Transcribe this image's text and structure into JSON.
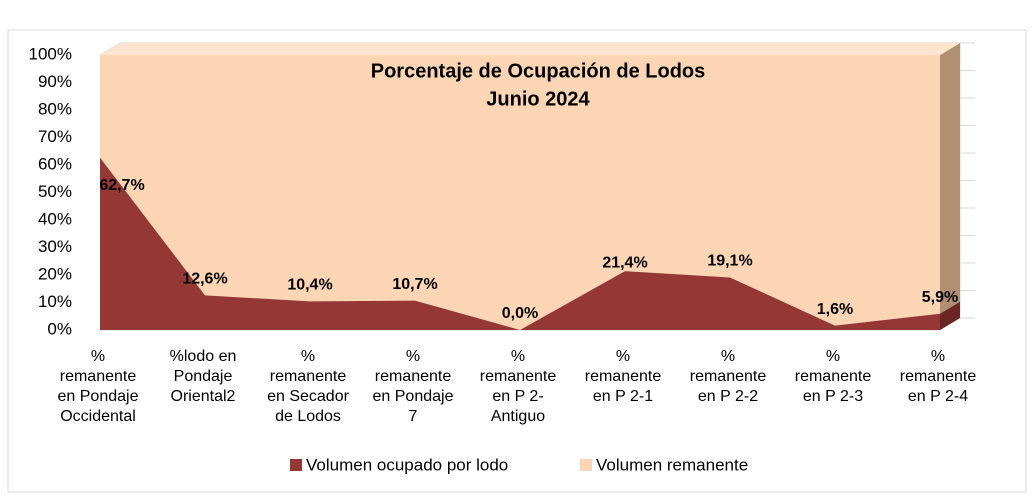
{
  "chart_data": {
    "type": "area",
    "title": "Porcentaje de Ocupación de Lodos",
    "subtitle": "Junio 2024",
    "categories": [
      [
        "%",
        "remanente",
        "en Pondaje",
        "Occidental"
      ],
      [
        "%lodo en",
        "Pondaje",
        "Oriental2"
      ],
      [
        "%",
        "remanente",
        "en Secador",
        "de Lodos"
      ],
      [
        "%",
        "remanente",
        "en Pondaje",
        "7"
      ],
      [
        "%",
        "remanente",
        "en P 2-",
        "Antiguo"
      ],
      [
        "%",
        "remanente",
        "en P 2-1"
      ],
      [
        "%",
        "remanente",
        "en P 2-2"
      ],
      [
        "%",
        "remanente",
        "en P 2-3"
      ],
      [
        "%",
        "remanente",
        "en P 2-4"
      ]
    ],
    "stacked": true,
    "series": [
      {
        "name": "Volumen ocupado por lodo",
        "color": "#953735",
        "values": [
          62.7,
          12.6,
          10.4,
          10.7,
          0.0,
          21.4,
          19.1,
          1.6,
          5.9
        ],
        "value_labels": [
          "62,7%",
          "12,6%",
          "10,4%",
          "10,7%",
          "0,0%",
          "21,4%",
          "19,1%",
          "1,6%",
          "5,9%"
        ]
      },
      {
        "name": "Volumen remanente",
        "color": "#fcd5b5",
        "values": [
          37.3,
          87.4,
          89.6,
          89.3,
          100.0,
          78.6,
          80.9,
          98.4,
          94.1
        ]
      }
    ],
    "ylim": [
      0,
      100
    ],
    "yticks": [
      {
        "value": 0,
        "label": "0%"
      },
      {
        "value": 10,
        "label": "10%"
      },
      {
        "value": 20,
        "label": "20%"
      },
      {
        "value": 30,
        "label": "30%"
      },
      {
        "value": 40,
        "label": "40%"
      },
      {
        "value": 50,
        "label": "50%"
      },
      {
        "value": 60,
        "label": "60%"
      },
      {
        "value": 70,
        "label": "70%"
      },
      {
        "value": 80,
        "label": "80%"
      },
      {
        "value": 90,
        "label": "90%"
      },
      {
        "value": 100,
        "label": "100%"
      }
    ],
    "grid": true,
    "legend": "bottom"
  }
}
